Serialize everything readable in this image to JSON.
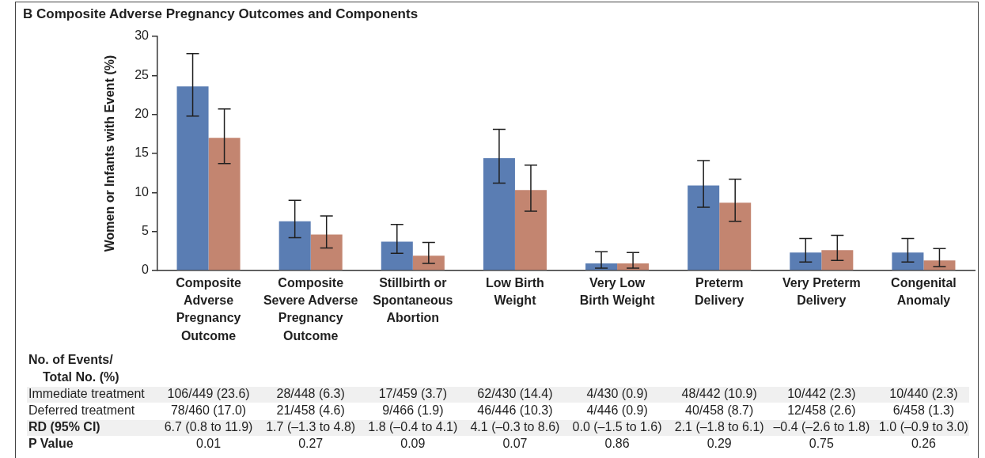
{
  "chart_data": {
    "type": "bar",
    "title": "B Composite Adverse Pregnancy Outcomes and Components",
    "ylabel": "Women or Infants with Event (%)",
    "categories": [
      "Composite Adverse Pregnancy Outcome",
      "Composite Severe Adverse Pregnancy Outcome",
      "Stillbirth or Spontaneous Abortion",
      "Low Birth Weight",
      "Very Low Birth Weight",
      "Preterm Delivery",
      "Very Preterm Delivery",
      "Congenital Anomaly"
    ],
    "series": [
      {
        "color": "#5a7db3",
        "values": [
          23.6,
          6.3,
          3.7,
          14.4,
          0.9,
          10.9,
          2.3,
          2.3
        ],
        "errors": [
          [
            19.8,
            27.8
          ],
          [
            4.2,
            9.0
          ],
          [
            2.2,
            5.9
          ],
          [
            11.2,
            18.1
          ],
          [
            0.3,
            2.4
          ],
          [
            8.1,
            14.1
          ],
          [
            1.1,
            4.1
          ],
          [
            1.1,
            4.1
          ]
        ],
        "value_labels": [
          "106/449 (23.6)",
          "28/448 (6.3)",
          "17/459 (3.7)",
          "62/430 (14.4)",
          "4/430 (0.9)",
          "48/442 (10.9)",
          "10/442 (2.3)",
          "10/440 (2.3)"
        ]
      },
      {
        "color": "#c38570",
        "values": [
          17.0,
          4.6,
          1.9,
          10.3,
          0.9,
          8.7,
          2.6,
          1.3
        ],
        "errors": [
          [
            13.7,
            20.7
          ],
          [
            2.9,
            7.0
          ],
          [
            0.9,
            3.6
          ],
          [
            7.6,
            13.5
          ],
          [
            0.3,
            2.3
          ],
          [
            6.3,
            11.7
          ],
          [
            1.3,
            4.5
          ],
          [
            0.5,
            2.8
          ]
        ],
        "value_labels": [
          "78/460 (17.0)",
          "21/458 (4.6)",
          "9/466 (1.9)",
          "46/446 (10.3)",
          "4/446 (0.9)",
          "40/458 (8.7)",
          "12/458 (2.6)",
          "6/458 (1.3)"
        ]
      }
    ],
    "ylim": [
      0,
      30
    ],
    "yticks": [
      0,
      5,
      10,
      15,
      20,
      25,
      30
    ],
    "grid": false,
    "legend": false,
    "annotations": [
      "No. of Events/ Total No. (%)",
      "Immediate treatment",
      "Deferred treatment",
      "RD (95% CI)",
      "6.7 (0.8 to 11.9)",
      "1.7 (–1.3 to 4.8)",
      "1.8 (–0.4 to 4.1)",
      "4.1 (–0.3 to 8.6)",
      "0.0 (–1.5 to 1.6)",
      "2.1 (–1.8 to 6.1)",
      "–0.4 (–2.6 to 1.8)",
      "1.0 (–0.9 to 3.0)",
      "P Value",
      "0.01",
      "0.27",
      "0.09",
      "0.07",
      "0.86",
      "0.29",
      "0.75",
      "0.26"
    ]
  }
}
